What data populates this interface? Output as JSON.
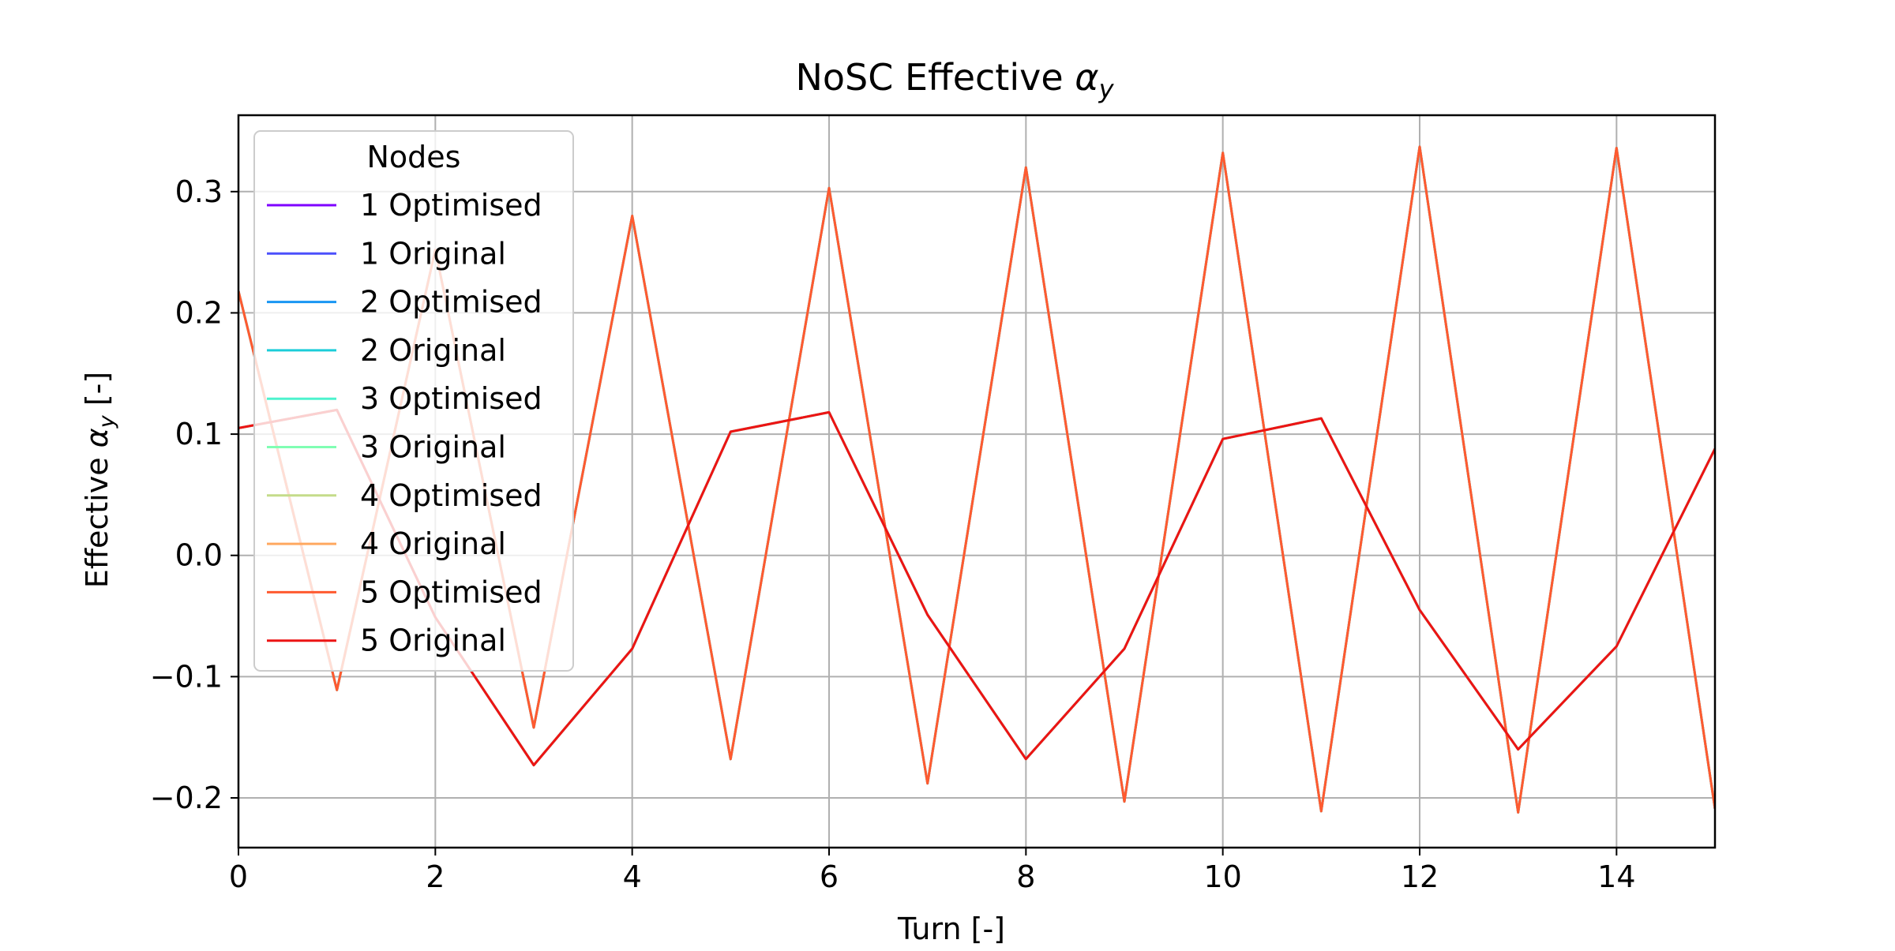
{
  "chart_data": {
    "type": "line",
    "title_prefix": "NoSC Effective ",
    "title_symbol": "α",
    "title_subscript": "y",
    "xlabel": "Turn [-]",
    "ylabel_prefix": "Effective ",
    "ylabel_symbol": "α",
    "ylabel_subscript": "y",
    "ylabel_suffix": " [-]",
    "xlim": [
      0,
      15
    ],
    "ylim": [
      -0.241,
      0.363
    ],
    "xticks": [
      0,
      2,
      4,
      6,
      8,
      10,
      12,
      14
    ],
    "xtick_labels": [
      "0",
      "2",
      "4",
      "6",
      "8",
      "10",
      "12",
      "14"
    ],
    "yticks": [
      -0.2,
      -0.1,
      0.0,
      0.1,
      0.2,
      0.3
    ],
    "ytick_labels": [
      "−0.2",
      "−0.1",
      "0.0",
      "0.1",
      "0.2",
      "0.3"
    ],
    "grid": true,
    "legend": {
      "title": "Nodes",
      "placement": "top-left"
    },
    "x": [
      0,
      1,
      2,
      3,
      4,
      5,
      6,
      7,
      8,
      9,
      10,
      11,
      12,
      13,
      14,
      15
    ],
    "series": [
      {
        "name": "1 Optimised",
        "color": "#7f00ff",
        "values": [
          0.218,
          -0.111,
          0.252,
          -0.142,
          0.28,
          -0.168,
          0.303,
          -0.188,
          0.32,
          -0.203,
          0.332,
          -0.211,
          0.337,
          -0.212,
          0.336,
          -0.209
        ]
      },
      {
        "name": "1 Original",
        "color": "#4c50fc",
        "values": [
          0.105,
          0.12,
          -0.051,
          -0.173,
          -0.077,
          0.102,
          0.118,
          -0.049,
          -0.168,
          -0.077,
          0.096,
          0.113,
          -0.045,
          -0.16,
          -0.075,
          0.088
        ]
      },
      {
        "name": "2 Optimised",
        "color": "#1996f3",
        "values": [
          0.218,
          -0.111,
          0.252,
          -0.142,
          0.28,
          -0.168,
          0.303,
          -0.188,
          0.32,
          -0.203,
          0.332,
          -0.211,
          0.337,
          -0.212,
          0.336,
          -0.209
        ]
      },
      {
        "name": "2 Original",
        "color": "#1ccdd9",
        "values": [
          0.105,
          0.12,
          -0.051,
          -0.173,
          -0.077,
          0.102,
          0.118,
          -0.049,
          -0.168,
          -0.077,
          0.096,
          0.113,
          -0.045,
          -0.16,
          -0.075,
          0.088
        ]
      },
      {
        "name": "3 Optimised",
        "color": "#4df3ce",
        "values": [
          0.218,
          -0.111,
          0.252,
          -0.142,
          0.28,
          -0.168,
          0.303,
          -0.188,
          0.32,
          -0.203,
          0.332,
          -0.211,
          0.337,
          -0.212,
          0.336,
          -0.209
        ]
      },
      {
        "name": "3 Original",
        "color": "#80feb3",
        "values": [
          0.105,
          0.12,
          -0.051,
          -0.173,
          -0.077,
          0.102,
          0.118,
          -0.049,
          -0.168,
          -0.077,
          0.096,
          0.113,
          -0.045,
          -0.16,
          -0.075,
          0.088
        ]
      },
      {
        "name": "4 Optimised",
        "color": "#c4dc8a",
        "values": [
          0.218,
          -0.111,
          0.252,
          -0.142,
          0.28,
          -0.168,
          0.303,
          -0.188,
          0.32,
          -0.203,
          0.332,
          -0.211,
          0.337,
          -0.212,
          0.336,
          -0.209
        ]
      },
      {
        "name": "4 Original",
        "color": "#ffa960",
        "values": [
          0.105,
          0.12,
          -0.051,
          -0.173,
          -0.077,
          0.102,
          0.118,
          -0.049,
          -0.168,
          -0.077,
          0.096,
          0.113,
          -0.045,
          -0.16,
          -0.075,
          0.088
        ]
      },
      {
        "name": "5 Optimised",
        "color": "#ff5a30",
        "values": [
          0.218,
          -0.111,
          0.252,
          -0.142,
          0.28,
          -0.168,
          0.303,
          -0.188,
          0.32,
          -0.203,
          0.332,
          -0.211,
          0.337,
          -0.212,
          0.336,
          -0.209
        ]
      },
      {
        "name": "5 Original",
        "color": "#ec1414",
        "values": [
          0.105,
          0.12,
          -0.051,
          -0.173,
          -0.077,
          0.102,
          0.118,
          -0.049,
          -0.168,
          -0.077,
          0.096,
          0.113,
          -0.045,
          -0.16,
          -0.075,
          0.088
        ]
      }
    ]
  }
}
